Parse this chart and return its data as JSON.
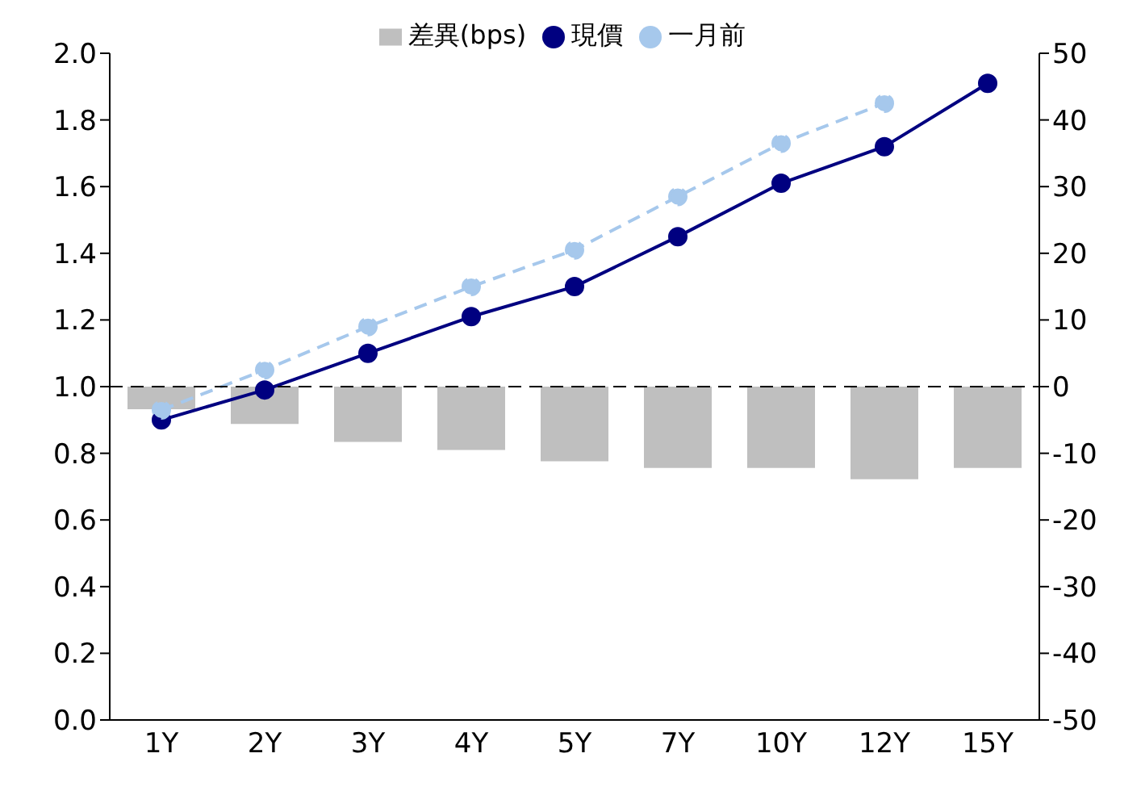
{
  "chart_data": {
    "type": "line",
    "categories": [
      "1Y",
      "2Y",
      "3Y",
      "4Y",
      "5Y",
      "7Y",
      "10Y",
      "12Y",
      "15Y"
    ],
    "series": [
      {
        "name": "差異(bps)",
        "type": "bar",
        "axis": "y2",
        "color": "#bfbfbf",
        "values": [
          -3.4,
          -5.6,
          -8.3,
          -9.5,
          -11.2,
          -12.2,
          -12.2,
          -13.9,
          -12.2
        ]
      },
      {
        "name": "現價",
        "color": "#000080",
        "marker": "circle",
        "line_style": "solid",
        "values": [
          0.9,
          0.99,
          1.1,
          1.21,
          1.3,
          1.45,
          1.61,
          1.72,
          1.91
        ]
      },
      {
        "name": "一月前",
        "color": "#a6c8ec",
        "marker": "circle",
        "line_style": "dashed",
        "values": [
          0.93,
          1.05,
          1.18,
          1.3,
          1.41,
          1.57,
          1.73,
          1.85,
          null
        ]
      }
    ],
    "ylim": [
      0,
      2.0
    ],
    "yticks": [
      {
        "value": 0,
        "label": "0.0"
      },
      {
        "value": 0.2,
        "label": "0.2"
      },
      {
        "value": 0.4,
        "label": "0.4"
      },
      {
        "value": 0.6,
        "label": "0.6"
      },
      {
        "value": 0.8,
        "label": "0.8"
      },
      {
        "value": 1.0,
        "label": "1.0"
      },
      {
        "value": 1.2,
        "label": "1.2"
      },
      {
        "value": 1.4,
        "label": "1.4"
      },
      {
        "value": 1.6,
        "label": "1.6"
      },
      {
        "value": 1.8,
        "label": "1.8"
      },
      {
        "value": 2.0,
        "label": "2.0"
      }
    ],
    "y2lim": [
      -50,
      50
    ],
    "y2ticks": [
      -50,
      -40,
      -30,
      -20,
      -10,
      0,
      10,
      20,
      30,
      40,
      50
    ],
    "ref_lines": [
      {
        "axis": "y",
        "value": 1.0,
        "color": "#000000",
        "line_style": "dashed"
      }
    ],
    "legend": "top"
  }
}
